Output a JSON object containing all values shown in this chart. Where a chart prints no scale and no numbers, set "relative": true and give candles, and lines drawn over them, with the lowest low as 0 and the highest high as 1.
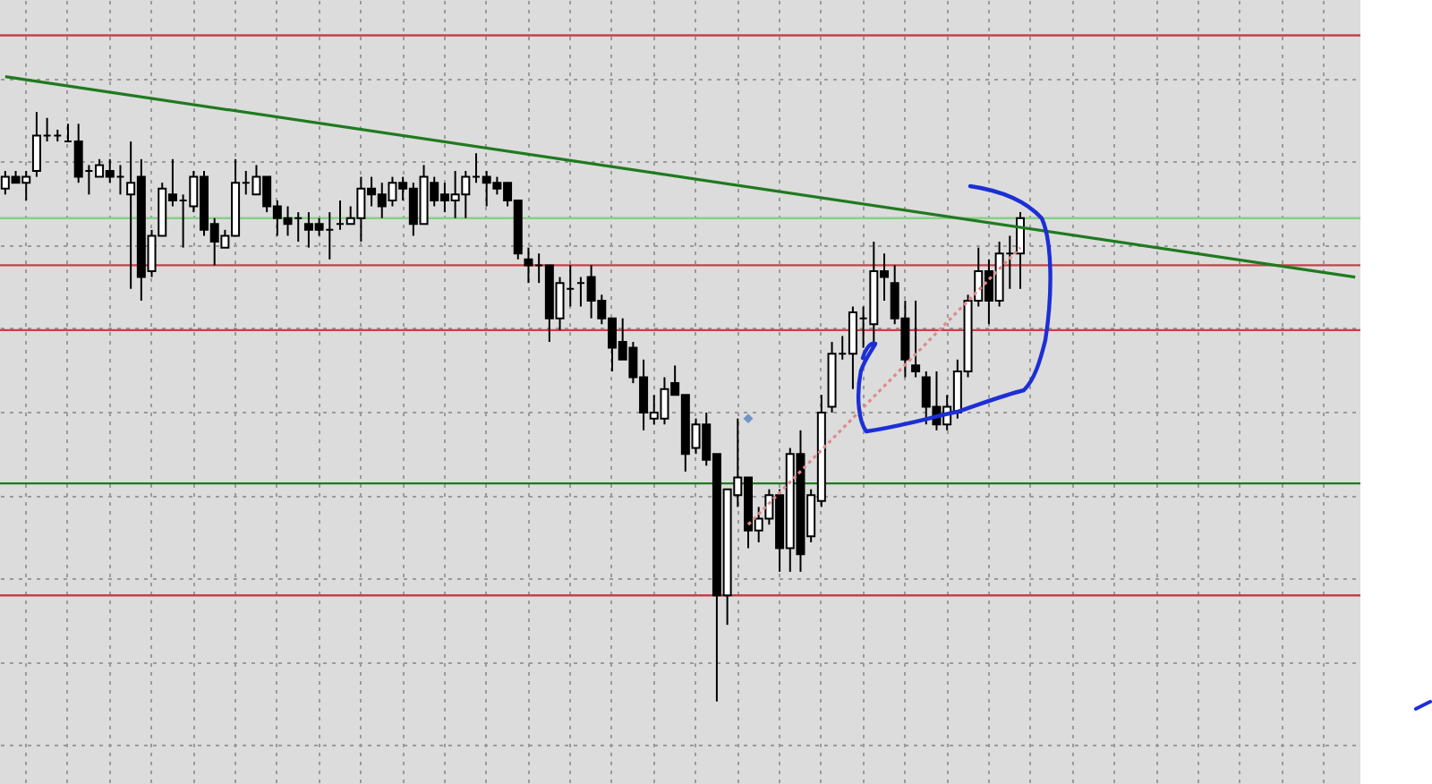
{
  "chart_data": {
    "type": "candlestick",
    "relative": true,
    "grid": true,
    "categories": [
      null,
      null,
      null,
      null,
      null,
      null,
      null,
      null,
      null,
      null,
      null,
      null,
      null,
      null,
      null,
      null,
      null,
      null,
      null,
      null,
      null,
      null,
      null,
      null,
      null,
      null,
      null,
      null,
      null,
      null,
      null,
      null,
      null,
      null,
      null,
      null,
      null,
      null,
      null,
      null,
      null,
      null,
      null,
      null,
      null,
      null,
      null,
      null,
      null,
      null,
      null,
      null,
      null,
      null,
      null,
      null,
      null,
      null,
      null,
      null,
      null,
      null,
      null,
      null,
      null,
      null,
      null,
      null,
      null,
      null,
      null,
      null,
      null,
      null,
      null,
      null,
      null,
      null,
      null,
      null,
      null,
      null,
      null,
      null,
      null,
      null,
      null,
      null,
      null,
      null,
      null,
      null,
      null,
      null,
      null,
      null,
      null,
      null,
      null,
      null,
      null,
      null,
      null,
      null,
      null,
      null,
      null,
      null,
      null,
      null,
      null,
      null,
      null,
      null,
      null,
      null,
      null,
      null,
      null,
      null,
      null,
      null,
      null,
      null,
      null,
      null,
      null,
      null,
      null,
      null
    ],
    "ohlc": [
      [
        0.87,
        0.9,
        0.86,
        0.89
      ],
      [
        0.89,
        0.9,
        0.88,
        0.88
      ],
      [
        0.88,
        0.9,
        0.85,
        0.89
      ],
      [
        0.9,
        1.0,
        0.89,
        0.96
      ],
      [
        0.96,
        0.99,
        0.95,
        0.96
      ],
      [
        0.96,
        0.97,
        0.95,
        0.96
      ],
      [
        0.95,
        0.98,
        0.95,
        0.95
      ],
      [
        0.95,
        0.98,
        0.88,
        0.89
      ],
      [
        0.9,
        0.91,
        0.86,
        0.9
      ],
      [
        0.89,
        0.92,
        0.89,
        0.91
      ],
      [
        0.9,
        0.92,
        0.88,
        0.89
      ],
      [
        0.89,
        0.91,
        0.86,
        0.89
      ],
      [
        0.86,
        0.95,
        0.7,
        0.88
      ],
      [
        0.89,
        0.92,
        0.68,
        0.72
      ],
      [
        0.73,
        0.8,
        0.72,
        0.79
      ],
      [
        0.79,
        0.88,
        0.79,
        0.87
      ],
      [
        0.86,
        0.92,
        0.84,
        0.85
      ],
      [
        0.85,
        0.86,
        0.77,
        0.85
      ],
      [
        0.84,
        0.9,
        0.83,
        0.89
      ],
      [
        0.89,
        0.9,
        0.79,
        0.8
      ],
      [
        0.81,
        0.82,
        0.74,
        0.78
      ],
      [
        0.77,
        0.8,
        0.77,
        0.79
      ],
      [
        0.79,
        0.92,
        0.79,
        0.88
      ],
      [
        0.88,
        0.9,
        0.86,
        0.88
      ],
      [
        0.86,
        0.91,
        0.86,
        0.89
      ],
      [
        0.89,
        0.89,
        0.83,
        0.84
      ],
      [
        0.84,
        0.85,
        0.79,
        0.82
      ],
      [
        0.82,
        0.84,
        0.79,
        0.81
      ],
      [
        0.82,
        0.83,
        0.78,
        0.82
      ],
      [
        0.81,
        0.83,
        0.77,
        0.8
      ],
      [
        0.81,
        0.82,
        0.79,
        0.8
      ],
      [
        0.8,
        0.83,
        0.75,
        0.8
      ],
      [
        0.81,
        0.85,
        0.8,
        0.81
      ],
      [
        0.81,
        0.84,
        0.81,
        0.82
      ],
      [
        0.82,
        0.89,
        0.78,
        0.87
      ],
      [
        0.87,
        0.89,
        0.84,
        0.86
      ],
      [
        0.86,
        0.88,
        0.82,
        0.84
      ],
      [
        0.85,
        0.89,
        0.84,
        0.88
      ],
      [
        0.88,
        0.89,
        0.85,
        0.87
      ],
      [
        0.87,
        0.88,
        0.79,
        0.81
      ],
      [
        0.81,
        0.91,
        0.81,
        0.89
      ],
      [
        0.88,
        0.89,
        0.84,
        0.85
      ],
      [
        0.86,
        0.88,
        0.83,
        0.85
      ],
      [
        0.85,
        0.9,
        0.82,
        0.86
      ],
      [
        0.86,
        0.9,
        0.82,
        0.89
      ],
      [
        0.89,
        0.93,
        0.88,
        0.89
      ],
      [
        0.89,
        0.9,
        0.84,
        0.88
      ],
      [
        0.88,
        0.89,
        0.86,
        0.87
      ],
      [
        0.88,
        0.88,
        0.84,
        0.85
      ],
      [
        0.85,
        0.85,
        0.75,
        0.76
      ],
      [
        0.75,
        0.77,
        0.71,
        0.74
      ],
      [
        0.74,
        0.76,
        0.71,
        0.74
      ],
      [
        0.74,
        0.74,
        0.61,
        0.65
      ],
      [
        0.65,
        0.72,
        0.63,
        0.71
      ],
      [
        0.7,
        0.74,
        0.67,
        0.7
      ],
      [
        0.71,
        0.72,
        0.67,
        0.71
      ],
      [
        0.72,
        0.74,
        0.65,
        0.68
      ],
      [
        0.68,
        0.69,
        0.64,
        0.65
      ],
      [
        0.65,
        0.65,
        0.56,
        0.6
      ],
      [
        0.61,
        0.65,
        0.58,
        0.58
      ],
      [
        0.6,
        0.61,
        0.54,
        0.55
      ],
      [
        0.55,
        0.58,
        0.46,
        0.49
      ],
      [
        0.48,
        0.52,
        0.47,
        0.49
      ],
      [
        0.48,
        0.55,
        0.47,
        0.53
      ],
      [
        0.54,
        0.57,
        0.52,
        0.52
      ],
      [
        0.52,
        0.52,
        0.39,
        0.42
      ],
      [
        0.43,
        0.48,
        0.42,
        0.47
      ],
      [
        0.47,
        0.49,
        0.4,
        0.41
      ],
      [
        0.42,
        0.42,
        0,
        0.18
      ],
      [
        0.18,
        0.36,
        0.13,
        0.36
      ],
      [
        0.35,
        0.48,
        0.33,
        0.38
      ],
      [
        0.38,
        0.38,
        0.26,
        0.29
      ],
      [
        0.29,
        0.33,
        0.27,
        0.31
      ],
      [
        0.31,
        0.36,
        0.3,
        0.35
      ],
      [
        0.35,
        0.36,
        0.22,
        0.26
      ],
      [
        0.26,
        0.43,
        0.22,
        0.42
      ],
      [
        0.42,
        0.46,
        0.22,
        0.25
      ],
      [
        0.28,
        0.36,
        0.27,
        0.35
      ],
      [
        0.34,
        0.52,
        0.33,
        0.49
      ],
      [
        0.5,
        0.61,
        0.49,
        0.59
      ],
      [
        0.59,
        0.62,
        0.58,
        0.59
      ],
      [
        0.59,
        0.67,
        0.53,
        0.66
      ],
      [
        0.65,
        0.67,
        0.6,
        0.65
      ],
      [
        0.64,
        0.78,
        0.61,
        0.73
      ],
      [
        0.73,
        0.76,
        0.68,
        0.72
      ],
      [
        0.71,
        0.74,
        0.64,
        0.65
      ],
      [
        0.65,
        0.68,
        0.55,
        0.58
      ],
      [
        0.57,
        0.68,
        0.55,
        0.56
      ],
      [
        0.55,
        0.56,
        0.47,
        0.5
      ],
      [
        0.5,
        0.56,
        0.46,
        0.47
      ],
      [
        0.47,
        0.52,
        0.46,
        0.5
      ],
      [
        0.49,
        0.58,
        0.48,
        0.56
      ],
      [
        0.56,
        0.69,
        0.55,
        0.68
      ],
      [
        0.68,
        0.77,
        0.67,
        0.73
      ],
      [
        0.73,
        0.75,
        0.64,
        0.68
      ],
      [
        0.68,
        0.78,
        0.67,
        0.76
      ],
      [
        0.76,
        0.79,
        0.7,
        0.76
      ],
      [
        0.76,
        0.83,
        0.7,
        0.82
      ],
      null,
      null,
      null,
      null,
      null,
      null,
      null,
      null,
      null,
      null,
      null,
      null,
      null,
      null,
      null,
      null,
      null,
      null,
      null,
      null,
      null,
      null,
      null,
      null,
      null,
      null,
      null,
      null,
      null,
      null,
      null,
      null
    ],
    "series": [
      {
        "type": "line",
        "color": "#1f7a1f",
        "line_style": "solid",
        "values": [
          1.06,
          null,
          null,
          null,
          null,
          null,
          null,
          null,
          null,
          null,
          null,
          null,
          null,
          null,
          null,
          null,
          null,
          null,
          null,
          null,
          null,
          null,
          null,
          null,
          null,
          null,
          null,
          null,
          null,
          null,
          null,
          null,
          null,
          null,
          null,
          null,
          null,
          null,
          null,
          null,
          null,
          null,
          null,
          null,
          null,
          null,
          null,
          null,
          null,
          null,
          null,
          null,
          null,
          null,
          null,
          null,
          null,
          null,
          null,
          null,
          null,
          null,
          null,
          null,
          null,
          null,
          null,
          null,
          null,
          null,
          null,
          null,
          null,
          null,
          null,
          null,
          null,
          null,
          null,
          null,
          null,
          null,
          null,
          null,
          null,
          null,
          null,
          null,
          null,
          null,
          null,
          null,
          null,
          null,
          null,
          null,
          null,
          null,
          null,
          null,
          null,
          null,
          null,
          null,
          null,
          null,
          null,
          null,
          null,
          null,
          null,
          null,
          null,
          null,
          null,
          null,
          null,
          null,
          null,
          null,
          null,
          null,
          null,
          null,
          null,
          null,
          null,
          null,
          null,
          0.72
        ]
      },
      {
        "type": "line",
        "color": "#e08a8a",
        "line_style": "dotted",
        "values": [
          null,
          null,
          null,
          null,
          null,
          null,
          null,
          null,
          null,
          null,
          null,
          null,
          null,
          null,
          null,
          null,
          null,
          null,
          null,
          null,
          null,
          null,
          null,
          null,
          null,
          null,
          null,
          null,
          null,
          null,
          null,
          null,
          null,
          null,
          null,
          null,
          null,
          null,
          null,
          null,
          null,
          null,
          null,
          null,
          null,
          null,
          null,
          null,
          null,
          null,
          null,
          null,
          null,
          null,
          null,
          null,
          null,
          null,
          null,
          null,
          null,
          null,
          null,
          null,
          null,
          null,
          null,
          null,
          null,
          null,
          null,
          0.3,
          null,
          null,
          null,
          null,
          null,
          null,
          null,
          null,
          null,
          null,
          null,
          null,
          null,
          null,
          null,
          null,
          null,
          null,
          null,
          null,
          null,
          null,
          null,
          null,
          null,
          0.77,
          null,
          null,
          null,
          null,
          null,
          null,
          null,
          null,
          null,
          null,
          null,
          null,
          null,
          null,
          null,
          null,
          null,
          null,
          null,
          null,
          null,
          null,
          null,
          null,
          null,
          null,
          null,
          null,
          null,
          null,
          null,
          null
        ]
      },
      {
        "type": "scatter",
        "color": "#3f78c0",
        "marker": "diamond",
        "values": [
          null,
          null,
          null,
          null,
          null,
          null,
          null,
          null,
          null,
          null,
          null,
          null,
          null,
          null,
          null,
          null,
          null,
          null,
          null,
          null,
          null,
          null,
          null,
          null,
          null,
          null,
          null,
          null,
          null,
          null,
          null,
          null,
          null,
          null,
          null,
          null,
          null,
          null,
          null,
          null,
          null,
          null,
          null,
          null,
          null,
          null,
          null,
          null,
          null,
          null,
          null,
          null,
          null,
          null,
          null,
          null,
          null,
          null,
          null,
          null,
          null,
          null,
          null,
          null,
          null,
          null,
          null,
          null,
          null,
          null,
          null,
          0.48,
          null,
          null,
          null,
          null,
          null,
          null,
          null,
          null,
          null,
          null,
          null,
          null,
          null,
          null,
          null,
          null,
          null,
          null,
          null,
          null,
          null,
          null,
          null,
          null,
          null,
          null,
          null,
          null,
          null,
          null,
          null,
          null,
          null,
          null,
          null,
          null,
          null,
          null,
          null,
          null,
          null,
          null,
          null,
          null,
          null,
          null,
          null,
          null,
          null,
          null,
          null,
          null,
          null,
          null,
          null,
          null,
          null,
          null
        ]
      }
    ],
    "ref_lines": [
      {
        "axis": "y",
        "value": 1.13,
        "color": "#c8404a"
      },
      {
        "axis": "y",
        "value": 0.82,
        "color": "#86d086"
      },
      {
        "axis": "y",
        "value": 0.74,
        "color": "#c8404a"
      },
      {
        "axis": "y",
        "value": 0.63,
        "color": "#c8404a"
      },
      {
        "axis": "y",
        "value": 0.37,
        "color": "#1f7a1f"
      },
      {
        "axis": "y",
        "value": 0.18,
        "color": "#c8404a"
      }
    ]
  }
}
